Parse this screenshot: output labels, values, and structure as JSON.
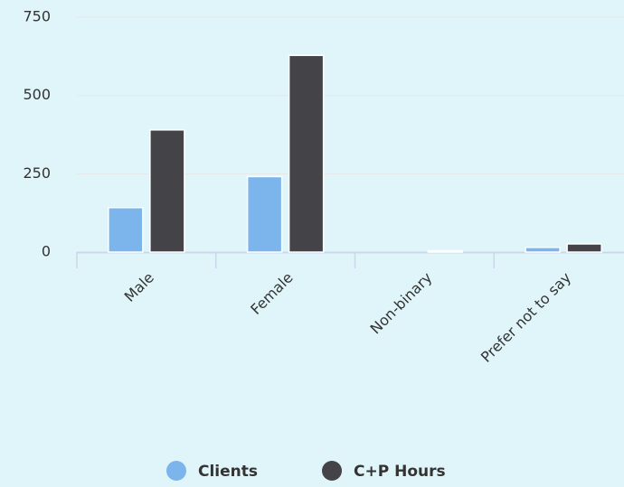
{
  "chart_data": {
    "type": "bar",
    "categories": [
      "Male",
      "Female",
      "Non-binary",
      "Prefer not to say"
    ],
    "series": [
      {
        "name": "Clients",
        "color": "#7cb5ec",
        "values": [
          142,
          241,
          0,
          15
        ]
      },
      {
        "name": "C+P Hours",
        "color": "#434348",
        "values": [
          390,
          628,
          4,
          26
        ]
      }
    ],
    "ylim": [
      0,
      750
    ],
    "yticks": [
      0,
      250,
      500,
      750
    ],
    "grid": true,
    "legend": "bottom"
  }
}
